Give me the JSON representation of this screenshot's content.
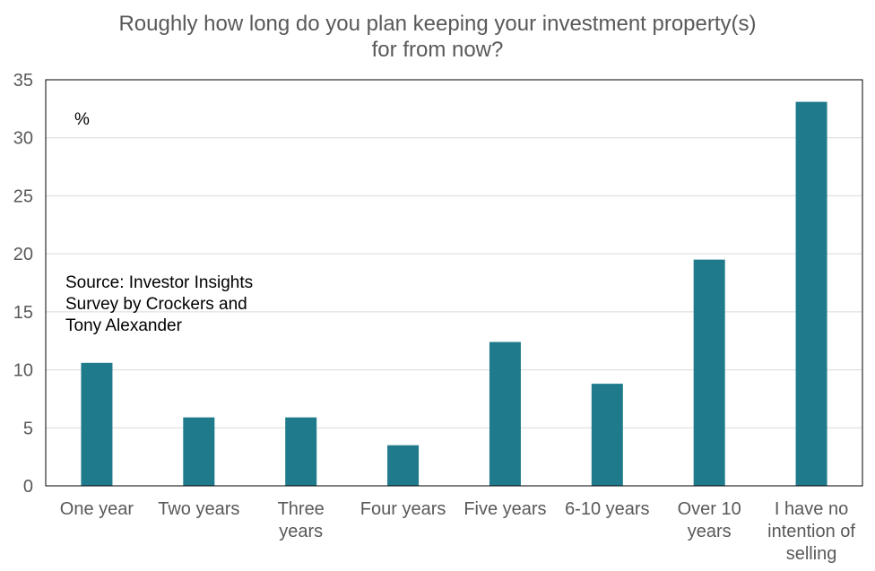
{
  "chart_data": {
    "type": "bar",
    "title_lines": [
      "Roughly how long do you plan keeping your investment property(s)",
      "for from now?"
    ],
    "unit_label": "%",
    "source_lines": [
      "Source: Investor Insights",
      "Survey by Crockers and",
      "Tony Alexander"
    ],
    "categories": [
      [
        "One year"
      ],
      [
        "Two years"
      ],
      [
        "Three",
        "years"
      ],
      [
        "Four years"
      ],
      [
        "Five years"
      ],
      [
        "6-10 years"
      ],
      [
        "Over 10",
        "years"
      ],
      [
        "I have no",
        "intention of",
        "selling"
      ]
    ],
    "values": [
      10.6,
      5.9,
      5.9,
      3.5,
      12.4,
      8.8,
      19.5,
      33.1
    ],
    "ylim": [
      0,
      35
    ],
    "yticks": [
      0,
      5,
      10,
      15,
      20,
      25,
      30,
      35
    ],
    "grid": true,
    "bar_color": "#1F7A8C",
    "gridline_color": "#D9D9D9",
    "frame_color": "#000000"
  }
}
